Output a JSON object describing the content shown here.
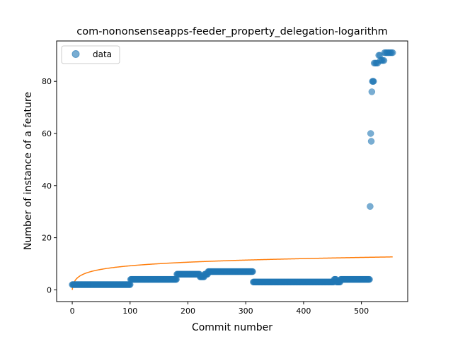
{
  "chart_data": {
    "type": "scatter",
    "title": "com-nononsenseapps-feeder_property_delegation-logarithm",
    "xlabel": "Commit number",
    "ylabel": "Number of instance of a feature",
    "xlim": [
      -27,
      580
    ],
    "ylim": [
      -4.5,
      95.5
    ],
    "xticks": [
      0,
      100,
      200,
      300,
      400,
      500
    ],
    "yticks": [
      0,
      20,
      40,
      60,
      80
    ],
    "grid": false,
    "legend_position": "top-left",
    "series": [
      {
        "name": "data",
        "kind": "scatter",
        "color": "#1f77b4",
        "segments": [
          {
            "x_start": 0,
            "x_end": 100,
            "y": 2
          },
          {
            "x_start": 101,
            "x_end": 180,
            "y": 4
          },
          {
            "x_start": 181,
            "x_end": 220,
            "y": 6
          },
          {
            "x_start": 221,
            "x_end": 228,
            "y": 5
          },
          {
            "x_start": 229,
            "x_end": 234,
            "y": 6
          },
          {
            "x_start": 235,
            "x_end": 312,
            "y": 7
          },
          {
            "x_start": 313,
            "x_end": 452,
            "y": 3
          },
          {
            "x_start": 453,
            "x_end": 456,
            "y": 4
          },
          {
            "x_start": 457,
            "x_end": 463,
            "y": 3
          },
          {
            "x_start": 464,
            "x_end": 514,
            "y": 4
          }
        ],
        "points": [
          [
            515,
            32
          ],
          [
            516,
            60
          ],
          [
            517,
            57
          ],
          [
            518,
            76
          ],
          [
            519,
            80
          ],
          [
            520,
            80
          ],
          [
            521,
            80
          ],
          [
            522,
            87
          ],
          [
            524,
            87
          ],
          [
            526,
            87
          ],
          [
            528,
            87
          ],
          [
            530,
            90
          ],
          [
            532,
            90
          ],
          [
            533,
            88
          ],
          [
            535,
            88
          ],
          [
            537,
            88
          ],
          [
            539,
            88
          ],
          [
            540,
            91
          ],
          [
            542,
            91
          ],
          [
            544,
            91
          ],
          [
            546,
            91
          ],
          [
            548,
            91
          ],
          [
            550,
            91
          ],
          [
            552,
            91
          ],
          [
            554,
            91
          ]
        ]
      },
      {
        "name": "",
        "kind": "line",
        "color": "#ff7f0e",
        "formula": "a*ln(x+1)",
        "a": 2.0,
        "x_range": [
          0,
          554
        ]
      }
    ]
  }
}
